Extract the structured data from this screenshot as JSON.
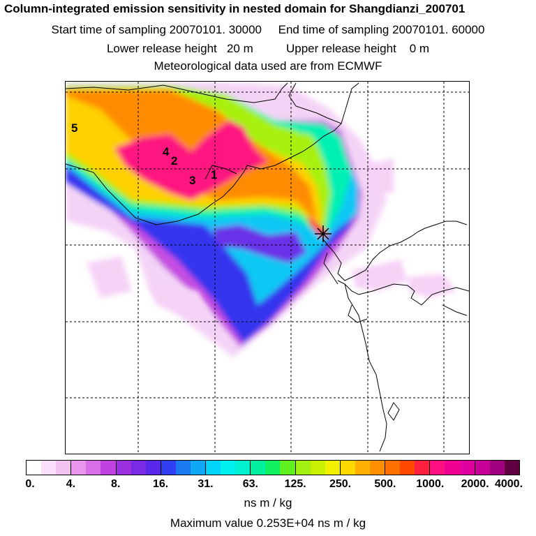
{
  "header": {
    "title": "Column-integrated emission sensitivity in nested domain for Shangdianzi_200701",
    "start_label": "Start time of sampling 20070101. 30000",
    "end_label": "End time of sampling 20070101. 60000",
    "lower_label": "Lower release height   20 m",
    "upper_label": "Upper release height    0 m",
    "met_label": "Meteorological data used are from ECMWF"
  },
  "map": {
    "release_marker": "asterisk-star-icon",
    "labels": [
      "5",
      "4",
      "2",
      "3",
      "1"
    ]
  },
  "colorbar": {
    "ticks": [
      "0.",
      "4.",
      "8.",
      "16.",
      "31.",
      "63.",
      "125.",
      "250.",
      "500.",
      "1000.",
      "2000.",
      "4000."
    ],
    "colors": [
      [
        "#ffffff",
        "#fbe0fb",
        "#f3c2f3"
      ],
      [
        "#e996ec",
        "#d770e6",
        "#c040e0"
      ],
      [
        "#9a30e0",
        "#7a2ae6",
        "#5a28ea"
      ],
      [
        "#3040f0",
        "#1a78f0",
        "#10a8f4"
      ],
      [
        "#00d4f8",
        "#00f0f0",
        "#00f0d0"
      ],
      [
        "#00f0a0",
        "#10f060",
        "#60f020"
      ],
      [
        "#a0f010",
        "#c8f000",
        "#f0f000"
      ],
      [
        "#ffd800",
        "#ffb000",
        "#ff9000"
      ],
      [
        "#ff7000",
        "#ff4800",
        "#ff2040"
      ],
      [
        "#ff1080",
        "#f00090",
        "#e000a0"
      ],
      [
        "#c8009a",
        "#a00080",
        "#600040"
      ]
    ],
    "units": "ns m / kg",
    "max_value_label": "Maximum value  0.253E+04 ns m / kg"
  }
}
